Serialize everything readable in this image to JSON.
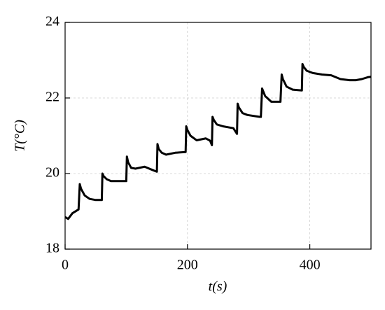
{
  "chart_data": {
    "type": "line",
    "xlabel": "t(s)",
    "ylabel": "T(°C)",
    "xlim": [
      0,
      500
    ],
    "xticks": [
      0,
      200,
      400
    ],
    "ylim": [
      18,
      24
    ],
    "yticks": [
      18,
      20,
      22,
      24
    ],
    "grid": true,
    "series": [
      {
        "color": "#000000",
        "x": [
          0,
          5,
          12,
          22,
          24,
          26,
          32,
          40,
          50,
          60,
          61,
          63,
          68,
          75,
          90,
          100,
          101,
          103,
          108,
          115,
          130,
          145,
          150,
          151,
          153,
          158,
          165,
          180,
          197,
          198,
          200,
          205,
          215,
          230,
          237,
          240,
          241,
          243,
          248,
          258,
          275,
          281,
          282,
          284,
          290,
          298,
          318,
          320,
          322,
          327,
          337,
          352,
          354,
          356,
          362,
          372,
          387,
          388,
          390,
          395,
          405,
          420,
          435,
          450,
          465,
          475,
          485,
          495,
          500
        ],
        "values": [
          18.85,
          18.8,
          18.95,
          19.05,
          19.72,
          19.6,
          19.42,
          19.33,
          19.3,
          19.3,
          20.0,
          19.93,
          19.85,
          19.8,
          19.8,
          19.8,
          20.45,
          20.3,
          20.15,
          20.13,
          20.18,
          20.08,
          20.05,
          20.78,
          20.65,
          20.55,
          20.5,
          20.55,
          20.57,
          21.25,
          21.15,
          21.0,
          20.88,
          20.93,
          20.87,
          20.75,
          21.5,
          21.42,
          21.3,
          21.25,
          21.2,
          21.05,
          21.85,
          21.75,
          21.6,
          21.55,
          21.5,
          21.5,
          22.25,
          22.05,
          21.9,
          21.9,
          22.62,
          22.5,
          22.3,
          22.22,
          22.2,
          22.9,
          22.82,
          22.72,
          22.66,
          22.62,
          22.6,
          22.5,
          22.47,
          22.47,
          22.5,
          22.55,
          22.56
        ]
      }
    ]
  }
}
